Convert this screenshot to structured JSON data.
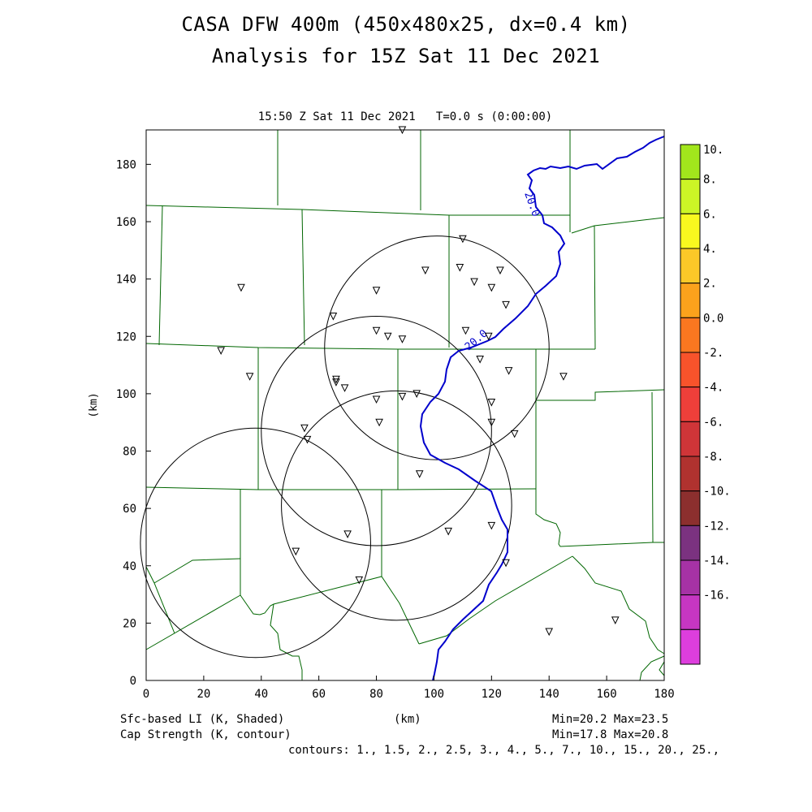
{
  "title": {
    "line1": "CASA DFW 400m (450x480x25, dx=0.4 km)",
    "line2": "Analysis for 15Z Sat 11 Dec 2021"
  },
  "subtitle": "15:50 Z Sat 11 Dec 2021   T=0.0 s (0:00:00)",
  "footer": {
    "shaded_label": "Sfc-based LI (K, Shaded)",
    "contour_label": "Cap Strength (K, contour)",
    "xunit": "(km)",
    "shaded_range": "Min=20.2 Max=23.5",
    "contour_range": "Min=17.8 Max=20.8",
    "contours": "contours: 1., 1.5, 2., 2.5, 3., 4., 5., 7., 10., 15., 20., 25.,"
  },
  "colors": {
    "frame": "#000000",
    "county_lines": "#006600",
    "contour": "#0000cc",
    "range_rings": "#000000"
  },
  "chart_data": {
    "type": "map",
    "xlabel": "(km)",
    "ylabel": "(km)",
    "xlim": [
      0,
      180
    ],
    "ylim": [
      0,
      192
    ],
    "xticks": [
      0,
      20,
      40,
      60,
      80,
      100,
      120,
      140,
      160,
      180
    ],
    "yticks": [
      0,
      20,
      40,
      60,
      80,
      100,
      120,
      140,
      160,
      180
    ],
    "contour_label": "20.0",
    "radar_rings": [
      {
        "cx": 38,
        "cy": 48,
        "r": 40
      },
      {
        "cx": 80,
        "cy": 87,
        "r": 40
      },
      {
        "cx": 101,
        "cy": 116,
        "r": 39
      },
      {
        "cx": 87,
        "cy": 61,
        "r": 40
      }
    ],
    "stations": [
      [
        89,
        192
      ],
      [
        110,
        154
      ],
      [
        97,
        143
      ],
      [
        109,
        144
      ],
      [
        114,
        139
      ],
      [
        123,
        143
      ],
      [
        120,
        137
      ],
      [
        125,
        131
      ],
      [
        33,
        137
      ],
      [
        65,
        127
      ],
      [
        80,
        136
      ],
      [
        80,
        122
      ],
      [
        84,
        120
      ],
      [
        89,
        119
      ],
      [
        111,
        122
      ],
      [
        119,
        120
      ],
      [
        26,
        115
      ],
      [
        116,
        112
      ],
      [
        126,
        108
      ],
      [
        36,
        106
      ],
      [
        66,
        105
      ],
      [
        66,
        104
      ],
      [
        69,
        102
      ],
      [
        145,
        106
      ],
      [
        80,
        98
      ],
      [
        89,
        99
      ],
      [
        94,
        100
      ],
      [
        120,
        97
      ],
      [
        81,
        90
      ],
      [
        120,
        90
      ],
      [
        128,
        86
      ],
      [
        55,
        88
      ],
      [
        56,
        84
      ],
      [
        95,
        72
      ],
      [
        70,
        51
      ],
      [
        52,
        45
      ],
      [
        120,
        54
      ],
      [
        105,
        52
      ],
      [
        125,
        41
      ],
      [
        74,
        35
      ],
      [
        140,
        17
      ],
      [
        163,
        21
      ]
    ],
    "colorbar": {
      "labels": [
        "10.",
        "8.",
        "6.",
        "4.",
        "2.",
        "0.0",
        "-2.",
        "-4.",
        "-6.",
        "-8.",
        "-10.",
        "-12.",
        "-14.",
        "-16."
      ],
      "colors": [
        "#a2e61c",
        "#ccf526",
        "#f9f81f",
        "#fbc828",
        "#fba21c",
        "#fa7720",
        "#f8532b",
        "#ee3f3a",
        "#cf3538",
        "#b0322f",
        "#8c2f2e",
        "#7b3280",
        "#a632a5",
        "#c636c2",
        "#dd3edd"
      ]
    }
  }
}
